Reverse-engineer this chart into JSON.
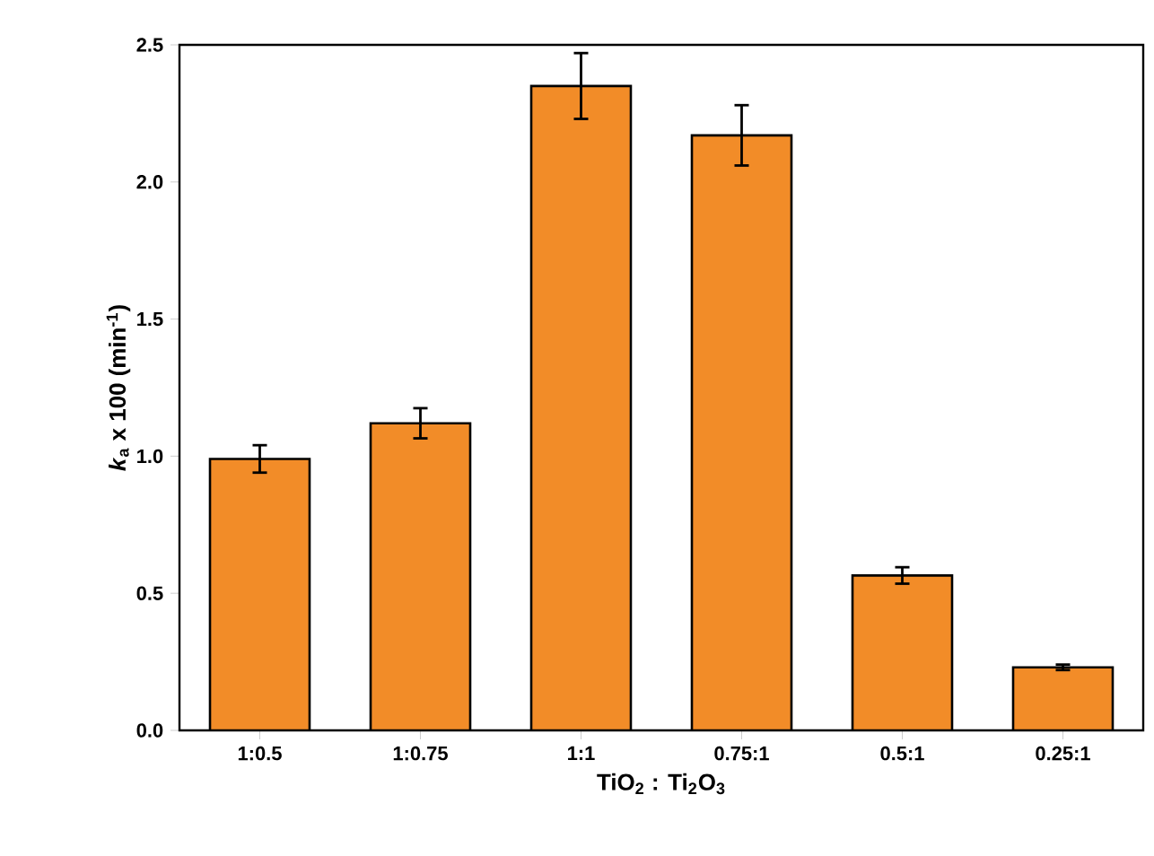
{
  "chart_data": {
    "type": "bar",
    "xlabel": "TiO$_{2}$ : Ti$_{2}$O$_{3}$",
    "ylabel": "*k*$_{a}$ x 100 (min$^{-1}$)",
    "categories": [
      "1:0.5",
      "1:0.75",
      "1:1",
      "0.75:1",
      "0.5:1",
      "0.25:1"
    ],
    "values": [
      0.99,
      1.12,
      2.35,
      2.17,
      0.565,
      0.23
    ],
    "errors": [
      0.05,
      0.055,
      0.12,
      0.11,
      0.03,
      0.01
    ],
    "color": "#f28c28",
    "ylim": [
      0,
      2.5
    ],
    "yticks": [
      {
        "value": 0,
        "label": "0.0"
      },
      {
        "value": 0.5,
        "label": "0.5"
      },
      {
        "value": 1,
        "label": "1.0"
      },
      {
        "value": 1.5,
        "label": "1.5"
      },
      {
        "value": 2,
        "label": "2.0"
      },
      {
        "value": 2.5,
        "label": "2.5"
      }
    ],
    "grid": false
  }
}
